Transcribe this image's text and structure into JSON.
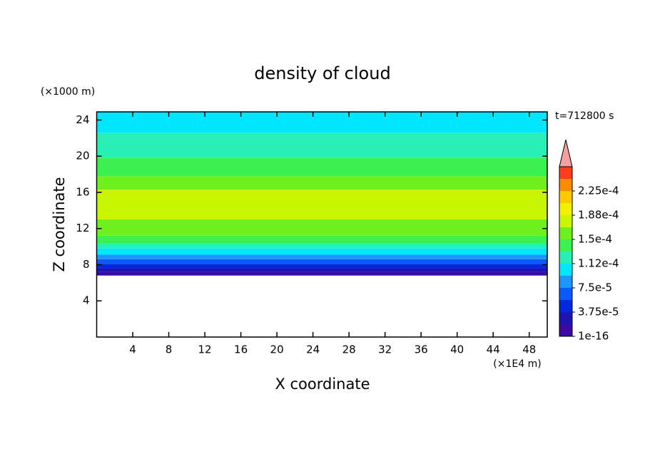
{
  "chart_data": {
    "type": "contour",
    "title": "density of cloud",
    "xlabel": "X coordinate",
    "ylabel": "Z coordinate",
    "x_unit": "(×1E4 m)",
    "y_unit": "(×1000 m)",
    "annotation": "t=712800 s",
    "xlim": [
      0,
      50
    ],
    "ylim": [
      0,
      24.9
    ],
    "xticks": [
      4,
      8,
      12,
      16,
      20,
      24,
      28,
      32,
      36,
      40,
      44,
      48
    ],
    "yticks": [
      4,
      8,
      12,
      16,
      20,
      24
    ],
    "z_edges": [
      6.8,
      7.2,
      7.6,
      8.1,
      8.6,
      9.1,
      9.8,
      10.4,
      11.2,
      13.0,
      16.3,
      17.8,
      19.8,
      21.0,
      22.6,
      24.9
    ],
    "values": [
      1e-05,
      2.8e-05,
      4.7e-05,
      6.5e-05,
      8.4e-05,
      0.000103,
      0.00012,
      0.00014,
      0.00016,
      0.000175,
      0.00016,
      0.00014,
      0.00013,
      0.000115,
      0.0001
    ],
    "colorbar": {
      "levels": [
        1e-16,
        1.875e-05,
        3.75e-05,
        5.625e-05,
        7.5e-05,
        9.375e-05,
        0.0001125,
        0.00013125,
        0.00015,
        0.00016875,
        0.0001875,
        0.00020625,
        0.000225,
        0.00024375,
        0.0002625
      ],
      "colors": [
        "#3c0aa0",
        "#1e14b4",
        "#0028dc",
        "#0a5aff",
        "#1e96ff",
        "#00e6ff",
        "#28f0b4",
        "#3cf050",
        "#6ef01e",
        "#c8f500",
        "#f0f000",
        "#ffc800",
        "#ff8c00",
        "#ff3c1e"
      ],
      "extend_color": "#f4a0a0",
      "ticks": [
        {
          "value": 1e-16,
          "label": "1e-16"
        },
        {
          "value": 3.75e-05,
          "label": "3.75e-5"
        },
        {
          "value": 7.5e-05,
          "label": "7.5e-5"
        },
        {
          "value": 0.0001125,
          "label": "1.12e-4"
        },
        {
          "value": 0.00015,
          "label": "1.5e-4"
        },
        {
          "value": 0.0001875,
          "label": "1.88e-4"
        },
        {
          "value": 0.000225,
          "label": "2.25e-4"
        }
      ]
    }
  }
}
